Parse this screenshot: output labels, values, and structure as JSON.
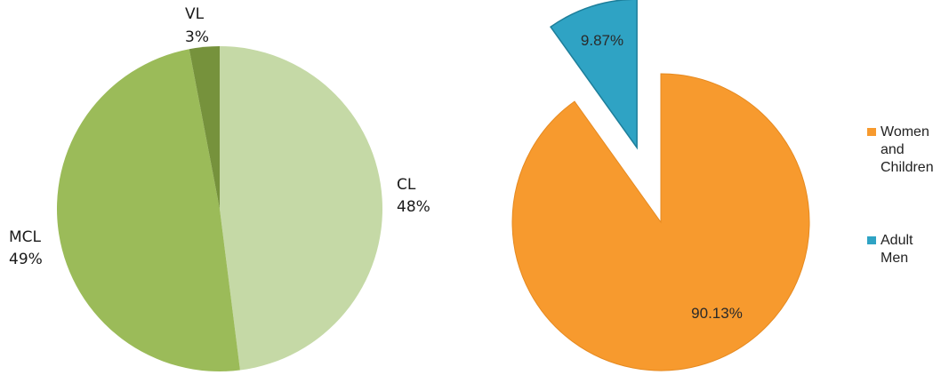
{
  "chart_data": [
    {
      "type": "pie",
      "slices": [
        {
          "label": "CL",
          "value": 48,
          "display": "48%",
          "color": "#c5d9a6"
        },
        {
          "label": "MCL",
          "value": 49,
          "display": "49%",
          "color": "#9bbb59"
        },
        {
          "label": "VL",
          "value": 3,
          "display": "3%",
          "color": "#76923c"
        }
      ]
    },
    {
      "type": "pie",
      "legend_position": "right",
      "slices": [
        {
          "label": "Women and Children",
          "value": 90.13,
          "display": "90.13%",
          "color": "#f79a2e",
          "exploded": false
        },
        {
          "label": "Adult Men",
          "value": 9.87,
          "display": "9.87%",
          "color": "#2fa3c4",
          "exploded": true
        }
      ],
      "legend": [
        {
          "lines": [
            "Women",
            "and",
            "Children"
          ],
          "color": "#f79a2e"
        },
        {
          "lines": [
            "Adult",
            "Men"
          ],
          "color": "#2fa3c4"
        }
      ]
    }
  ]
}
